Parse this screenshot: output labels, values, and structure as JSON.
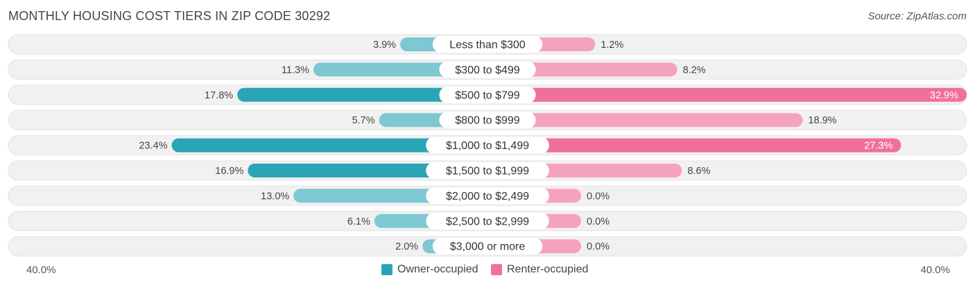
{
  "title": "MONTHLY HOUSING COST TIERS IN ZIP CODE 30292",
  "source": "Source: ZipAtlas.com",
  "colors": {
    "owner_light": "#7dc8d1",
    "owner_dark": "#2ba4b7",
    "renter_light": "#f5a3bd",
    "renter_dark": "#f07098",
    "row_bg": "#f1f1f1",
    "row_border": "#e2e2e2"
  },
  "chart_data": {
    "type": "bar",
    "orientation": "horizontal-diverging",
    "title": "MONTHLY HOUSING COST TIERS IN ZIP CODE 30292",
    "categories": [
      "Less than $300",
      "$300 to $499",
      "$500 to $799",
      "$800 to $999",
      "$1,000 to $1,499",
      "$1,500 to $1,999",
      "$2,000 to $2,499",
      "$2,500 to $2,999",
      "$3,000 or more"
    ],
    "series": [
      {
        "name": "Owner-occupied",
        "values": [
          3.9,
          11.3,
          17.8,
          5.7,
          23.4,
          16.9,
          13.0,
          6.1,
          2.0
        ],
        "labels": [
          "3.9%",
          "11.3%",
          "17.8%",
          "5.7%",
          "23.4%",
          "16.9%",
          "13.0%",
          "6.1%",
          "2.0%"
        ]
      },
      {
        "name": "Renter-occupied",
        "values": [
          1.2,
          8.2,
          32.9,
          18.9,
          27.3,
          8.6,
          0.0,
          0.0,
          0.0
        ],
        "labels": [
          "1.2%",
          "8.2%",
          "32.9%",
          "18.9%",
          "27.3%",
          "8.6%",
          "0.0%",
          "0.0%",
          "0.0%"
        ]
      }
    ],
    "xlim": [
      -40,
      40
    ],
    "axis_min_label": "40.0%",
    "axis_max_label": "40.0%",
    "legend_position": "bottom-center"
  }
}
